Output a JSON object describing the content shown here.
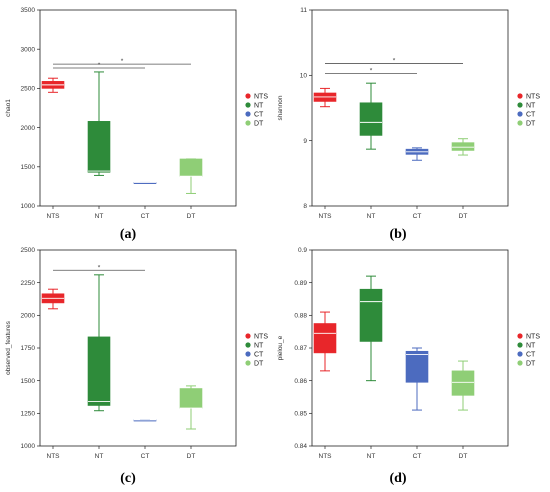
{
  "groups": [
    "NTS",
    "NT",
    "CT",
    "DT"
  ],
  "colors": {
    "NTS": "#e8262a",
    "NT": "#2e8b3a",
    "CT": "#4c6bbf",
    "DT": "#8fce76"
  },
  "chart_data": [
    {
      "type": "box",
      "panel_label": "(a)",
      "ylabel": "chao1",
      "ylim": [
        1000,
        3500
      ],
      "yticks": [
        1000,
        1500,
        2000,
        2500,
        3000,
        3500
      ],
      "categories": [
        "NTS",
        "NT",
        "CT",
        "DT"
      ],
      "boxes": [
        {
          "group": "NTS",
          "min": 2450,
          "q1": 2500,
          "median": 2545,
          "q3": 2590,
          "max": 2630
        },
        {
          "group": "NT",
          "min": 1390,
          "q1": 1430,
          "median": 1445,
          "q3": 2080,
          "max": 2710
        },
        {
          "group": "CT",
          "min": 1300,
          "q1": 1300,
          "median": 1300,
          "q3": 1300,
          "max": 1300
        },
        {
          "group": "DT",
          "min": 1160,
          "q1": 1380,
          "median": 1380,
          "q3": 1600,
          "max": 1600
        }
      ],
      "significance": [
        {
          "from": "NTS",
          "to": "CT",
          "y": 2760,
          "label": "*"
        },
        {
          "from": "NTS",
          "to": "DT",
          "y": 2810,
          "label": "*"
        }
      ],
      "legend": [
        "NTS",
        "NT",
        "CT",
        "DT"
      ]
    },
    {
      "type": "box",
      "panel_label": "(b)",
      "ylabel": "shannon",
      "ylim": [
        8,
        11
      ],
      "yticks": [
        8,
        9,
        10,
        11
      ],
      "categories": [
        "NTS",
        "NT",
        "CT",
        "DT"
      ],
      "boxes": [
        {
          "group": "NTS",
          "min": 9.52,
          "q1": 9.6,
          "median": 9.67,
          "q3": 9.73,
          "max": 9.8
        },
        {
          "group": "NT",
          "min": 8.87,
          "q1": 9.08,
          "median": 9.28,
          "q3": 9.58,
          "max": 9.88
        },
        {
          "group": "CT",
          "min": 8.7,
          "q1": 8.79,
          "median": 8.83,
          "q3": 8.87,
          "max": 8.89
        },
        {
          "group": "DT",
          "min": 8.78,
          "q1": 8.85,
          "median": 8.9,
          "q3": 8.97,
          "max": 9.03
        }
      ],
      "significance": [
        {
          "from": "NTS",
          "to": "CT",
          "y": 10.03,
          "label": "*"
        },
        {
          "from": "NTS",
          "to": "DT",
          "y": 10.18,
          "label": "*"
        }
      ],
      "legend": [
        "NTS",
        "NT",
        "CT",
        "DT"
      ]
    },
    {
      "type": "box",
      "panel_label": "(c)",
      "ylabel": "observed_features",
      "ylim": [
        1000,
        2500
      ],
      "yticks": [
        1000,
        1250,
        1500,
        1750,
        2000,
        2250,
        2500
      ],
      "categories": [
        "NTS",
        "NT",
        "CT",
        "DT"
      ],
      "boxes": [
        {
          "group": "NTS",
          "min": 2050,
          "q1": 2095,
          "median": 2130,
          "q3": 2165,
          "max": 2200
        },
        {
          "group": "NT",
          "min": 1270,
          "q1": 1310,
          "median": 1340,
          "q3": 1835,
          "max": 2310
        },
        {
          "group": "CT",
          "min": 1200,
          "q1": 1200,
          "median": 1200,
          "q3": 1200,
          "max": 1200
        },
        {
          "group": "DT",
          "min": 1130,
          "q1": 1290,
          "median": 1290,
          "q3": 1440,
          "max": 1460
        }
      ],
      "significance": [
        {
          "from": "NTS",
          "to": "CT",
          "y": 2345,
          "label": "*"
        }
      ],
      "legend": [
        "NTS",
        "NT",
        "CT",
        "DT"
      ]
    },
    {
      "type": "box",
      "panel_label": "(d)",
      "ylabel": "pielou_e",
      "ylim": [
        0.84,
        0.9
      ],
      "yticks": [
        0.84,
        0.85,
        0.86,
        0.87,
        0.88,
        0.89,
        0.9
      ],
      "categories": [
        "NTS",
        "NT",
        "CT",
        "DT"
      ],
      "boxes": [
        {
          "group": "NTS",
          "min": 0.863,
          "q1": 0.8685,
          "median": 0.8745,
          "q3": 0.8775,
          "max": 0.881
        },
        {
          "group": "NT",
          "min": 0.86,
          "q1": 0.872,
          "median": 0.8842,
          "q3": 0.888,
          "max": 0.892
        },
        {
          "group": "CT",
          "min": 0.851,
          "q1": 0.8595,
          "median": 0.868,
          "q3": 0.869,
          "max": 0.87
        },
        {
          "group": "DT",
          "min": 0.851,
          "q1": 0.8555,
          "median": 0.8595,
          "q3": 0.863,
          "max": 0.866
        }
      ],
      "significance": [],
      "legend": [
        "NTS",
        "NT",
        "CT",
        "DT"
      ]
    }
  ]
}
